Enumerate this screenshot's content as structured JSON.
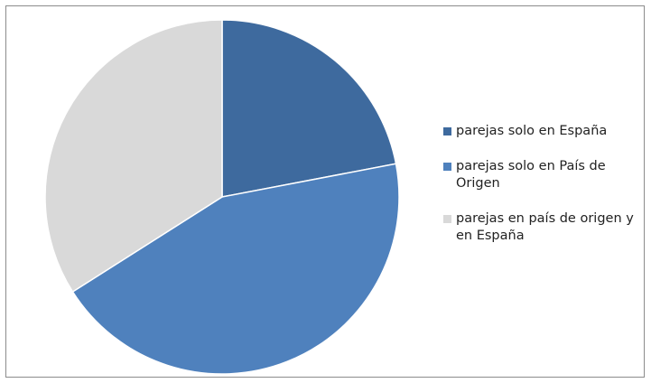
{
  "chart_data": {
    "type": "pie",
    "title": "",
    "legend_position": "right",
    "series": [
      {
        "categories": [
          "parejas solo en España",
          "parejas solo en País de Origen",
          "parejas en país de origen y en España"
        ],
        "values": [
          22,
          44,
          34
        ],
        "colors": [
          "#3E6A9E",
          "#4F81BD",
          "#D9D9D9"
        ]
      }
    ]
  }
}
